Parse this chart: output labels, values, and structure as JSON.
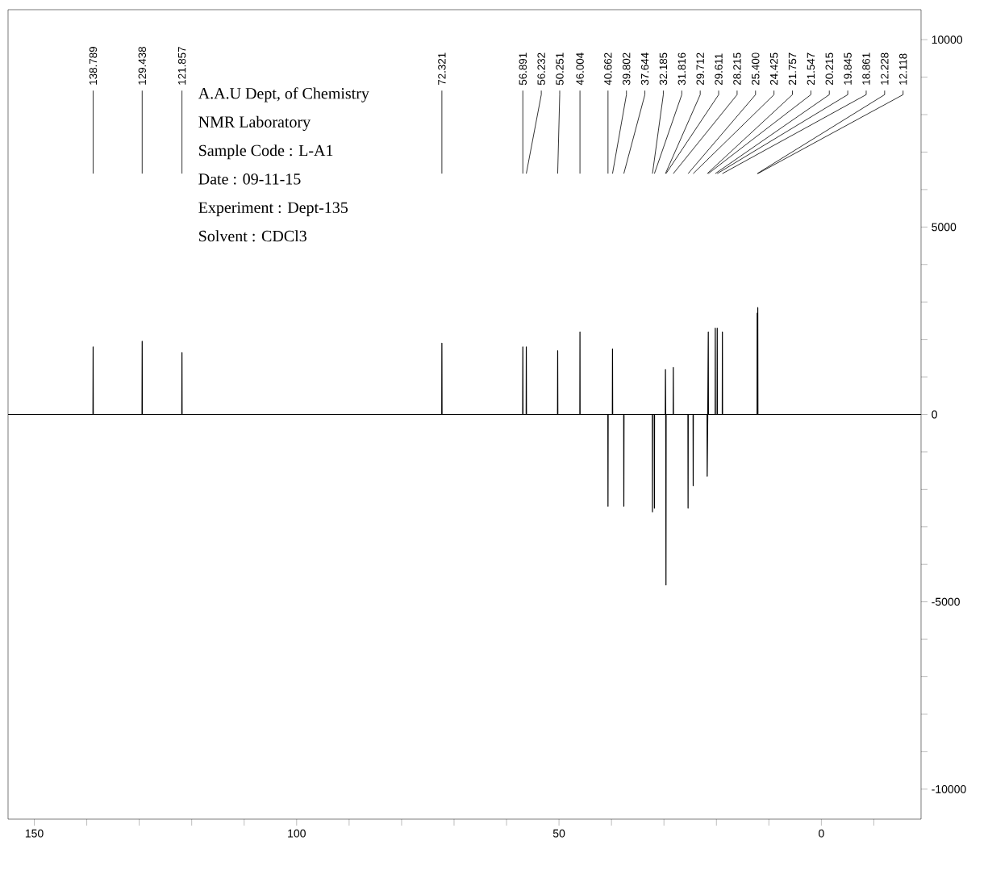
{
  "chart_data": {
    "type": "line",
    "xlim": [
      155,
      -19
    ],
    "ylim": [
      -10800,
      10800
    ],
    "xticks": [
      150,
      {
        "value": 140,
        "label": null
      },
      {
        "value": 130,
        "label": null
      },
      {
        "value": 120,
        "label": null
      },
      {
        "value": 110,
        "label": null
      },
      100,
      {
        "value": 90,
        "label": null
      },
      {
        "value": 80,
        "label": null
      },
      {
        "value": 70,
        "label": null
      },
      {
        "value": 60,
        "label": null
      },
      50,
      {
        "value": 40,
        "label": null
      },
      {
        "value": 30,
        "label": null
      },
      {
        "value": 20,
        "label": null
      },
      {
        "value": 10,
        "label": null
      },
      0,
      {
        "value": -10,
        "label": null
      }
    ],
    "yticks": [
      -10000,
      {
        "value": -9000,
        "label": null
      },
      {
        "value": -8000,
        "label": null
      },
      {
        "value": -7000,
        "label": null
      },
      {
        "value": -6000,
        "label": null
      },
      -5000,
      {
        "value": -4000,
        "label": null
      },
      {
        "value": -3000,
        "label": null
      },
      {
        "value": -2000,
        "label": null
      },
      {
        "value": -1000,
        "label": null
      },
      0,
      {
        "value": 1000,
        "label": null
      },
      {
        "value": 2000,
        "label": null
      },
      {
        "value": 3000,
        "label": null
      },
      {
        "value": 4000,
        "label": null
      },
      5000,
      {
        "value": 6000,
        "label": null
      },
      {
        "value": 7000,
        "label": null
      },
      {
        "value": 8000,
        "label": null
      },
      {
        "value": 9000,
        "label": null
      },
      10000
    ],
    "series": [
      {
        "color": "#000000",
        "x": [
          155,
          138.82,
          138.789,
          138.76,
          129.47,
          129.438,
          129.41,
          121.89,
          121.857,
          121.83,
          72.35,
          72.321,
          72.29,
          56.92,
          56.891,
          56.86,
          56.26,
          56.232,
          56.2,
          50.28,
          50.251,
          50.22,
          46.03,
          46.004,
          45.98,
          40.69,
          40.662,
          40.63,
          39.83,
          39.802,
          39.77,
          37.67,
          37.644,
          37.61,
          32.21,
          32.185,
          32.16,
          31.84,
          31.816,
          31.79,
          29.74,
          29.712,
          29.66,
          29.611,
          29.58,
          28.24,
          28.215,
          28.19,
          25.43,
          25.4,
          25.37,
          24.45,
          24.425,
          24.4,
          21.78,
          21.757,
          21.65,
          21.547,
          21.52,
          20.24,
          20.215,
          20.19,
          19.87,
          19.845,
          19.82,
          18.89,
          18.861,
          18.83,
          12.25,
          12.228,
          12.17,
          12.118,
          12.09,
          -19
        ],
        "values": [
          0,
          0,
          1800,
          0,
          0,
          1950,
          0,
          0,
          1650,
          0,
          0,
          1900,
          0,
          0,
          1800,
          0,
          0,
          1800,
          0,
          0,
          1700,
          0,
          0,
          2200,
          0,
          0,
          -2450,
          0,
          0,
          1750,
          0,
          0,
          -2450,
          0,
          0,
          -2600,
          0,
          0,
          -2500,
          0,
          0,
          1200,
          0,
          -4550,
          0,
          0,
          1250,
          0,
          0,
          -2500,
          0,
          0,
          -1900,
          0,
          0,
          -1650,
          0,
          2200,
          0,
          0,
          2300,
          0,
          0,
          2300,
          0,
          0,
          2200,
          0,
          0,
          2700,
          0,
          2850,
          0,
          0
        ]
      }
    ],
    "annotations": [
      {
        "text": "138.789",
        "x": 138.789
      },
      {
        "text": "129.438",
        "x": 129.438
      },
      {
        "text": "121.857",
        "x": 121.857
      },
      {
        "text": "72.321",
        "x": 72.321
      },
      {
        "text": "56.891",
        "x": 56.891
      },
      {
        "text": "56.232",
        "x": 56.232
      },
      {
        "text": "50.251",
        "x": 50.251
      },
      {
        "text": "46.004",
        "x": 46.004
      },
      {
        "text": "40.662",
        "x": 40.662
      },
      {
        "text": "39.802",
        "x": 39.802
      },
      {
        "text": "37.644",
        "x": 37.644
      },
      {
        "text": "32.185",
        "x": 32.185
      },
      {
        "text": "31.816",
        "x": 31.816
      },
      {
        "text": "29.712",
        "x": 29.712
      },
      {
        "text": "29.611",
        "x": 29.611
      },
      {
        "text": "28.215",
        "x": 28.215
      },
      {
        "text": "25.400",
        "x": 25.4
      },
      {
        "text": "24.425",
        "x": 24.425
      },
      {
        "text": "21.757",
        "x": 21.757
      },
      {
        "text": "21.547",
        "x": 21.547
      },
      {
        "text": "20.215",
        "x": 20.215
      },
      {
        "text": "19.845",
        "x": 19.845
      },
      {
        "text": "18.861",
        "x": 18.861
      },
      {
        "text": "12.228",
        "x": 12.228
      },
      {
        "text": "12.118",
        "x": 12.118
      },
      "A.A.U Dept, of Chemistry",
      "NMR Laboratory",
      "Sample Code : L-A1",
      "Date : 09-11-15",
      "Experiment : Dept-135",
      "Solvent : CDCl3"
    ]
  }
}
